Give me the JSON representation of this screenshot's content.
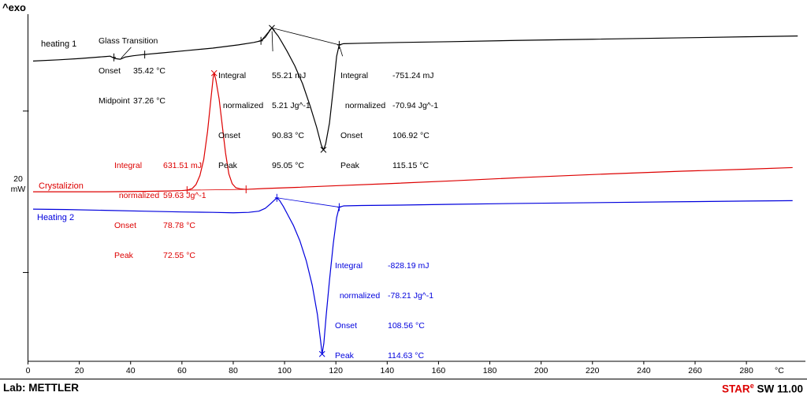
{
  "exo_label": "^exo",
  "scale_bar": {
    "value": "20",
    "unit": "mW"
  },
  "curve_labels": {
    "heating1": "heating 1",
    "crystallization": "Crystalizion",
    "heating2": "Heating 2"
  },
  "colors": {
    "heating1": "#000000",
    "crystallization": "#dd0000",
    "heating2": "#0000dd"
  },
  "annotations": {
    "glass_transition": {
      "title": "Glass Transition",
      "rows": [
        {
          "label": "Onset",
          "value": "35.42 °C"
        },
        {
          "label": "Midpoint",
          "value": "37.26 °C"
        }
      ]
    },
    "h1_cold_cryst": {
      "rows": [
        {
          "label": "Integral",
          "value": "55.21 mJ"
        },
        {
          "label": "  normalized",
          "value": "5.21 Jg^-1"
        },
        {
          "label": "Onset",
          "value": "90.83 °C"
        },
        {
          "label": "Peak",
          "value": "95.05 °C"
        }
      ]
    },
    "h1_melt": {
      "rows": [
        {
          "label": "Integral",
          "value": "-751.24 mJ"
        },
        {
          "label": "  normalized",
          "value": "-70.94 Jg^-1"
        },
        {
          "label": "Onset",
          "value": "106.92 °C"
        },
        {
          "label": "Peak",
          "value": "115.15 °C"
        }
      ]
    },
    "cryst_peak": {
      "rows": [
        {
          "label": "Integral",
          "value": "631.51 mJ"
        },
        {
          "label": "  normalized",
          "value": "59.63 Jg^-1"
        },
        {
          "label": "Onset",
          "value": "78.78 °C"
        },
        {
          "label": "Peak",
          "value": "72.55 °C"
        }
      ]
    },
    "h2_melt": {
      "rows": [
        {
          "label": "Integral",
          "value": "-828.19 mJ"
        },
        {
          "label": "  normalized",
          "value": "-78.21 Jg^-1"
        },
        {
          "label": "Onset",
          "value": "108.56 °C"
        },
        {
          "label": "Peak",
          "value": "114.63 °C"
        }
      ]
    }
  },
  "footer": {
    "lab": "Lab: METTLER",
    "software_star": "STAR",
    "software_sup": "e",
    "software_rest": " SW 11.00"
  },
  "chart_data": {
    "type": "line",
    "x_unit": "°C",
    "x_ticks": [
      0,
      20,
      40,
      60,
      80,
      100,
      120,
      140,
      160,
      180,
      200,
      220,
      240,
      260,
      280
    ],
    "xlim": [
      0,
      303
    ],
    "y_unit": "mW",
    "ylim": [
      0,
      43
    ],
    "exo_direction": "up",
    "grid": false,
    "scale_bar": {
      "mW": 20,
      "from_mW": 11,
      "to_mW": 31
    },
    "series": [
      {
        "name": "heating 1",
        "color_key": "heating1",
        "results": {
          "glass_transition": {
            "onset_C": 35.42,
            "midpoint_C": 37.26
          },
          "cold_crystallization": {
            "integral_mJ": 55.21,
            "normalized_Jg": 5.21,
            "onset_C": 90.83,
            "peak_C": 95.05
          },
          "melting": {
            "integral_mJ": -751.24,
            "normalized_Jg": -70.94,
            "onset_C": 106.92,
            "peak_C": 115.15
          }
        },
        "points": [
          [
            2,
            37.2
          ],
          [
            12,
            37.35
          ],
          [
            20,
            37.5
          ],
          [
            26,
            37.65
          ],
          [
            30,
            37.75
          ],
          [
            32,
            37.8
          ],
          [
            34,
            37.5
          ],
          [
            36,
            37.42
          ],
          [
            38,
            37.7
          ],
          [
            41,
            37.85
          ],
          [
            45,
            38.0
          ],
          [
            52,
            38.2
          ],
          [
            62,
            38.5
          ],
          [
            72,
            38.8
          ],
          [
            82,
            39.2
          ],
          [
            88,
            39.5
          ],
          [
            90.8,
            39.7
          ],
          [
            92.5,
            40.15
          ],
          [
            94,
            40.85
          ],
          [
            95.05,
            41.3
          ],
          [
            96,
            40.9
          ],
          [
            97.5,
            40.3
          ],
          [
            99,
            39.5
          ],
          [
            101,
            38.4
          ],
          [
            104,
            36.6
          ],
          [
            107,
            34.4
          ],
          [
            110,
            31.6
          ],
          [
            112.5,
            29.0
          ],
          [
            114.3,
            26.8
          ],
          [
            115.15,
            26.2
          ],
          [
            116,
            26.9
          ],
          [
            117.5,
            29.5
          ],
          [
            119,
            33.8
          ],
          [
            120.3,
            37.8
          ],
          [
            121.3,
            39.2
          ],
          [
            123,
            39.35
          ],
          [
            130,
            39.4
          ],
          [
            145,
            39.5
          ],
          [
            165,
            39.6
          ],
          [
            190,
            39.75
          ],
          [
            220,
            39.9
          ],
          [
            250,
            40.05
          ],
          [
            280,
            40.2
          ],
          [
            300,
            40.3
          ]
        ],
        "x_markers": [
          [
            95.05,
            41.3
          ],
          [
            115.15,
            26.2
          ]
        ],
        "tick_markers": [
          [
            33.5,
            37.65
          ],
          [
            45.5,
            38.0
          ],
          [
            90.8,
            39.7
          ],
          [
            121.3,
            39.2
          ]
        ],
        "baseline": [
          [
            90.8,
            39.7
          ],
          [
            95.05,
            41.3
          ],
          [
            121.3,
            39.2
          ]
        ]
      },
      {
        "name": "Crystalizion",
        "color_key": "crystallization",
        "results": {
          "crystallization": {
            "integral_mJ": 631.51,
            "normalized_Jg": 59.63,
            "onset_C": 78.78,
            "peak_C": 72.55
          }
        },
        "points": [
          [
            2,
            21.0
          ],
          [
            15,
            21.0
          ],
          [
            30,
            21.0
          ],
          [
            45,
            21.05
          ],
          [
            55,
            21.1
          ],
          [
            60,
            21.15
          ],
          [
            62,
            21.2
          ],
          [
            64,
            21.4
          ],
          [
            65.5,
            21.9
          ],
          [
            67,
            23.0
          ],
          [
            68.5,
            25.0
          ],
          [
            70,
            28.5
          ],
          [
            71.3,
            32.5
          ],
          [
            72.2,
            35.2
          ],
          [
            72.55,
            35.7
          ],
          [
            73.2,
            34.9
          ],
          [
            74.5,
            32.5
          ],
          [
            75.8,
            29.0
          ],
          [
            77,
            25.8
          ],
          [
            78.3,
            23.2
          ],
          [
            79.6,
            22.0
          ],
          [
            81,
            21.5
          ],
          [
            83,
            21.35
          ],
          [
            85,
            21.3
          ],
          [
            92,
            21.4
          ],
          [
            105,
            21.55
          ],
          [
            120,
            21.75
          ],
          [
            140,
            22.0
          ],
          [
            165,
            22.35
          ],
          [
            195,
            22.8
          ],
          [
            225,
            23.2
          ],
          [
            255,
            23.55
          ],
          [
            280,
            23.8
          ],
          [
            298,
            24.0
          ]
        ],
        "x_markers": [
          [
            72.55,
            35.7
          ]
        ],
        "tick_markers": [
          [
            62,
            21.2
          ],
          [
            85,
            21.3
          ]
        ],
        "baseline": [
          [
            62,
            21.2
          ],
          [
            85,
            21.3
          ]
        ]
      },
      {
        "name": "Heating 2",
        "color_key": "heating2",
        "results": {
          "melting": {
            "integral_mJ": -828.19,
            "normalized_Jg": -78.21,
            "onset_C": 108.56,
            "peak_C": 114.63
          }
        },
        "points": [
          [
            2,
            18.85
          ],
          [
            15,
            18.8
          ],
          [
            30,
            18.7
          ],
          [
            45,
            18.6
          ],
          [
            60,
            18.5
          ],
          [
            72,
            18.45
          ],
          [
            80,
            18.4
          ],
          [
            86,
            18.45
          ],
          [
            90,
            18.6
          ],
          [
            92.5,
            18.95
          ],
          [
            94.5,
            19.5
          ],
          [
            96,
            19.95
          ],
          [
            97,
            20.25
          ],
          [
            98,
            19.95
          ],
          [
            99.5,
            19.2
          ],
          [
            101,
            18.3
          ],
          [
            103.5,
            16.8
          ],
          [
            106,
            14.9
          ],
          [
            108.5,
            12.4
          ],
          [
            110.8,
            9.4
          ],
          [
            112.8,
            5.8
          ],
          [
            114.1,
            2.4
          ],
          [
            114.63,
            0.9
          ],
          [
            115.3,
            2.2
          ],
          [
            116.2,
            5.6
          ],
          [
            117.5,
            10.0
          ],
          [
            119,
            14.6
          ],
          [
            120.3,
            17.8
          ],
          [
            121.3,
            19.1
          ],
          [
            123,
            19.25
          ],
          [
            130,
            19.3
          ],
          [
            145,
            19.35
          ],
          [
            165,
            19.45
          ],
          [
            190,
            19.55
          ],
          [
            220,
            19.65
          ],
          [
            250,
            19.75
          ],
          [
            280,
            19.85
          ],
          [
            298,
            19.9
          ]
        ],
        "x_markers": [
          [
            114.63,
            0.9
          ]
        ],
        "tick_markers": [
          [
            97,
            20.25
          ],
          [
            121.3,
            19.1
          ]
        ],
        "baseline": [
          [
            97,
            20.25
          ],
          [
            121.3,
            19.1
          ]
        ]
      }
    ],
    "leader_lines": [
      {
        "color_key": "heating1",
        "from": [
          40.2,
          38.9
        ],
        "to": [
          36.3,
          37.55
        ]
      },
      {
        "color_key": "heating1",
        "from": [
          95.4,
          38.4
        ],
        "to": [
          95.1,
          40.9
        ]
      },
      {
        "color_key": "heating1",
        "from": [
          122.6,
          37.8
        ],
        "to": [
          121.5,
          38.95
        ]
      }
    ]
  }
}
